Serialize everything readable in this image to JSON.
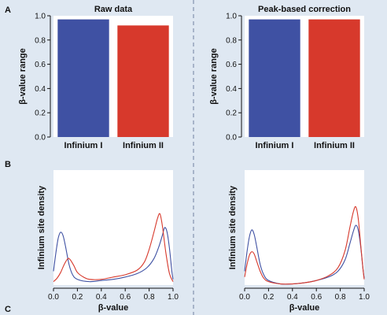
{
  "panel_labels": {
    "a": "A",
    "b": "B",
    "c": "C"
  },
  "colors": {
    "background": "#dfe8f2",
    "plot_bg": "#ffffff",
    "infinium_i": "#3f51a3",
    "infinium_ii": "#d7392c",
    "divider": "#6f7fa0"
  },
  "chart_data": [
    {
      "type": "bar",
      "title": "Raw data",
      "ylabel": "β-value range",
      "categories": [
        "Infinium I",
        "Infinium II"
      ],
      "values": [
        0.97,
        0.92
      ],
      "colors": [
        "#3f51a3",
        "#d7392c"
      ],
      "ylim": [
        0,
        1.0
      ],
      "yticks": [
        "0.0",
        "0.2",
        "0.4",
        "0.6",
        "0.8",
        "1.0"
      ]
    },
    {
      "type": "bar",
      "title": "Peak-based correction",
      "ylabel": "β-value range",
      "categories": [
        "Infinium I",
        "Infinium II"
      ],
      "values": [
        0.97,
        0.97
      ],
      "colors": [
        "#3f51a3",
        "#d7392c"
      ],
      "ylim": [
        0,
        1.0
      ],
      "yticks": [
        "0.0",
        "0.2",
        "0.4",
        "0.6",
        "0.8",
        "1.0"
      ]
    },
    {
      "type": "line",
      "title": "",
      "xlabel": "β-value",
      "ylabel": "Infinium site density",
      "xlim": [
        0,
        1.0
      ],
      "xticks": [
        "0.0",
        "0.2",
        "0.4",
        "0.6",
        "0.8",
        "1.0"
      ],
      "ylim": [
        0,
        1.0
      ],
      "series": [
        {
          "color": "#3f51a3",
          "x": [
            0.0,
            0.02,
            0.04,
            0.06,
            0.08,
            0.1,
            0.13,
            0.16,
            0.2,
            0.3,
            0.4,
            0.5,
            0.6,
            0.7,
            0.78,
            0.84,
            0.88,
            0.91,
            0.93,
            0.95,
            0.97,
            0.99,
            1.0
          ],
          "y": [
            0.12,
            0.28,
            0.41,
            0.46,
            0.43,
            0.34,
            0.18,
            0.09,
            0.05,
            0.03,
            0.04,
            0.05,
            0.07,
            0.1,
            0.15,
            0.23,
            0.33,
            0.43,
            0.5,
            0.46,
            0.32,
            0.12,
            0.05
          ]
        },
        {
          "color": "#d7392c",
          "x": [
            0.0,
            0.03,
            0.06,
            0.09,
            0.12,
            0.14,
            0.17,
            0.2,
            0.25,
            0.3,
            0.4,
            0.5,
            0.6,
            0.7,
            0.76,
            0.8,
            0.84,
            0.87,
            0.89,
            0.91,
            0.94,
            0.97,
            1.0
          ],
          "y": [
            0.03,
            0.06,
            0.11,
            0.18,
            0.23,
            0.22,
            0.17,
            0.11,
            0.07,
            0.05,
            0.05,
            0.07,
            0.09,
            0.13,
            0.2,
            0.31,
            0.46,
            0.58,
            0.62,
            0.52,
            0.28,
            0.1,
            0.03
          ]
        }
      ]
    },
    {
      "type": "line",
      "title": "",
      "xlabel": "β-value",
      "ylabel": "Infinium site density",
      "xlim": [
        0,
        1.0
      ],
      "xticks": [
        "0.0",
        "0.2",
        "0.4",
        "0.6",
        "0.8",
        "1.0"
      ],
      "ylim": [
        0,
        1.0
      ],
      "series": [
        {
          "color": "#3f51a3",
          "x": [
            0.0,
            0.02,
            0.04,
            0.06,
            0.08,
            0.1,
            0.13,
            0.16,
            0.2,
            0.3,
            0.4,
            0.5,
            0.6,
            0.7,
            0.78,
            0.84,
            0.88,
            0.91,
            0.93,
            0.95,
            0.97,
            0.99,
            1.0
          ],
          "y": [
            0.12,
            0.29,
            0.42,
            0.48,
            0.44,
            0.34,
            0.18,
            0.09,
            0.04,
            0.01,
            0.01,
            0.02,
            0.04,
            0.07,
            0.12,
            0.22,
            0.36,
            0.47,
            0.52,
            0.48,
            0.34,
            0.14,
            0.06
          ]
        },
        {
          "color": "#d7392c",
          "x": [
            0.0,
            0.02,
            0.04,
            0.06,
            0.08,
            0.1,
            0.13,
            0.16,
            0.2,
            0.3,
            0.4,
            0.5,
            0.6,
            0.7,
            0.78,
            0.84,
            0.88,
            0.91,
            0.93,
            0.95,
            0.97,
            0.99,
            1.0
          ],
          "y": [
            0.07,
            0.18,
            0.26,
            0.29,
            0.27,
            0.21,
            0.12,
            0.06,
            0.03,
            0.01,
            0.01,
            0.02,
            0.04,
            0.08,
            0.15,
            0.3,
            0.5,
            0.64,
            0.68,
            0.58,
            0.36,
            0.14,
            0.05
          ]
        }
      ]
    }
  ]
}
